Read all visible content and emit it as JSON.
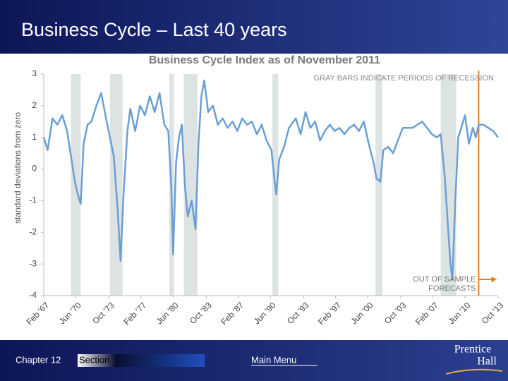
{
  "slide": {
    "title": "Business Cycle – Last 40 years"
  },
  "footer": {
    "chapter": "Chapter 12",
    "section": "Section",
    "menu": "Main Menu",
    "logo": [
      "Prentice",
      "Hall"
    ]
  },
  "chart_data": {
    "type": "line",
    "title": "Business Cycle Index as of November 2011",
    "ylabel": "standard deviations from zero",
    "annotations": [
      "GRAY BARS INDICATE PERIODS OF RECESSION",
      [
        "OUT OF SAMPLE",
        "FORECASTS"
      ]
    ],
    "recessions": [
      [
        1969.9,
        1970.9
      ],
      [
        1973.9,
        1975.2
      ],
      [
        1980.0,
        1980.5
      ],
      [
        1981.5,
        1982.9
      ],
      [
        1990.6,
        1991.2
      ],
      [
        2001.2,
        2001.9
      ],
      [
        2007.9,
        2009.5
      ]
    ],
    "recession_color": "#dde3e3",
    "forecast_start": 2011.8,
    "forecast_color": "#e67e22",
    "xlim": [
      1967.1,
      2013.8
    ],
    "xticks": [
      {
        "value": 1967.1,
        "label": "Feb '67"
      },
      {
        "value": 1970.4,
        "label": "Jun '70"
      },
      {
        "value": 1973.8,
        "label": "Oct '73"
      },
      {
        "value": 1977.1,
        "label": "Feb '77"
      },
      {
        "value": 1980.4,
        "label": "Jun '80"
      },
      {
        "value": 1983.8,
        "label": "Oct '83"
      },
      {
        "value": 1987.1,
        "label": "Feb '87"
      },
      {
        "value": 1990.4,
        "label": "Jun '90"
      },
      {
        "value": 1993.8,
        "label": "Oct '93"
      },
      {
        "value": 1997.1,
        "label": "Feb '97"
      },
      {
        "value": 2000.4,
        "label": "Jun '00"
      },
      {
        "value": 2003.8,
        "label": "Oct '03"
      },
      {
        "value": 2007.1,
        "label": "Feb '07"
      },
      {
        "value": 2010.4,
        "label": "Jun '10"
      },
      {
        "value": 2013.8,
        "label": "Oct '13"
      }
    ],
    "ylim": [
      -4,
      3
    ],
    "yticks": [
      -4,
      -3,
      -2,
      -1,
      0,
      1,
      2,
      3
    ],
    "color": "#6a9fd4",
    "x": [
      1967.1,
      1967.5,
      1968,
      1968.5,
      1969,
      1969.5,
      1969.9,
      1970.3,
      1970.6,
      1970.9,
      1971.2,
      1971.6,
      1972,
      1972.5,
      1973,
      1973.5,
      1973.9,
      1974.3,
      1974.7,
      1975.0,
      1975.3,
      1975.7,
      1976,
      1976.5,
      1977,
      1977.5,
      1978,
      1978.5,
      1979,
      1979.5,
      1979.9,
      1980.2,
      1980.4,
      1980.7,
      1981,
      1981.3,
      1981.6,
      1981.9,
      1982.3,
      1982.7,
      1983,
      1983.3,
      1983.6,
      1984,
      1984.5,
      1985,
      1985.5,
      1986,
      1986.5,
      1987,
      1987.5,
      1988,
      1988.5,
      1989,
      1989.5,
      1990,
      1990.5,
      1990.8,
      1991,
      1991.3,
      1991.8,
      1992.3,
      1993,
      1993.5,
      1994,
      1994.5,
      1995,
      1995.5,
      1996,
      1996.5,
      1997,
      1997.5,
      1998,
      1998.5,
      1999,
      1999.5,
      2000,
      2000.5,
      2001,
      2001.3,
      2001.7,
      2002,
      2002.5,
      2003,
      2003.5,
      2004,
      2004.5,
      2005,
      2005.5,
      2006,
      2006.5,
      2007,
      2007.5,
      2007.9,
      2008.3,
      2008.6,
      2008.9,
      2009.1,
      2009.4,
      2009.7,
      2010,
      2010.4,
      2010.8,
      2011.2,
      2011.5,
      2011.8,
      2012.3,
      2012.8,
      2013.3,
      2013.8
    ],
    "values": [
      1.0,
      0.6,
      1.6,
      1.4,
      1.7,
      1.2,
      0.4,
      -0.4,
      -0.8,
      -1.1,
      0.8,
      1.4,
      1.5,
      2.0,
      2.4,
      1.6,
      1.0,
      0.4,
      -1.3,
      -2.9,
      -0.8,
      1.2,
      1.9,
      1.2,
      2.0,
      1.7,
      2.3,
      1.8,
      2.4,
      1.4,
      1.2,
      -0.5,
      -2.7,
      0.2,
      1.0,
      1.4,
      -0.5,
      -1.5,
      -1.0,
      -1.9,
      0.8,
      2.3,
      2.8,
      1.8,
      2.0,
      1.4,
      1.6,
      1.3,
      1.5,
      1.2,
      1.6,
      1.4,
      1.5,
      1.1,
      1.4,
      0.9,
      0.6,
      -0.3,
      -0.8,
      0.3,
      0.7,
      1.3,
      1.6,
      1.1,
      1.8,
      1.3,
      1.5,
      0.9,
      1.2,
      1.4,
      1.2,
      1.3,
      1.1,
      1.3,
      1.4,
      1.2,
      1.5,
      0.8,
      0.2,
      -0.3,
      -0.4,
      0.6,
      0.7,
      0.5,
      0.9,
      1.3,
      1.3,
      1.3,
      1.4,
      1.5,
      1.3,
      1.1,
      1.0,
      1.1,
      -0.2,
      -1.6,
      -3.0,
      -3.5,
      -1.0,
      1.0,
      1.3,
      1.7,
      0.8,
      1.3,
      1.0,
      1.4,
      1.4,
      1.3,
      1.2,
      1.0
    ]
  }
}
